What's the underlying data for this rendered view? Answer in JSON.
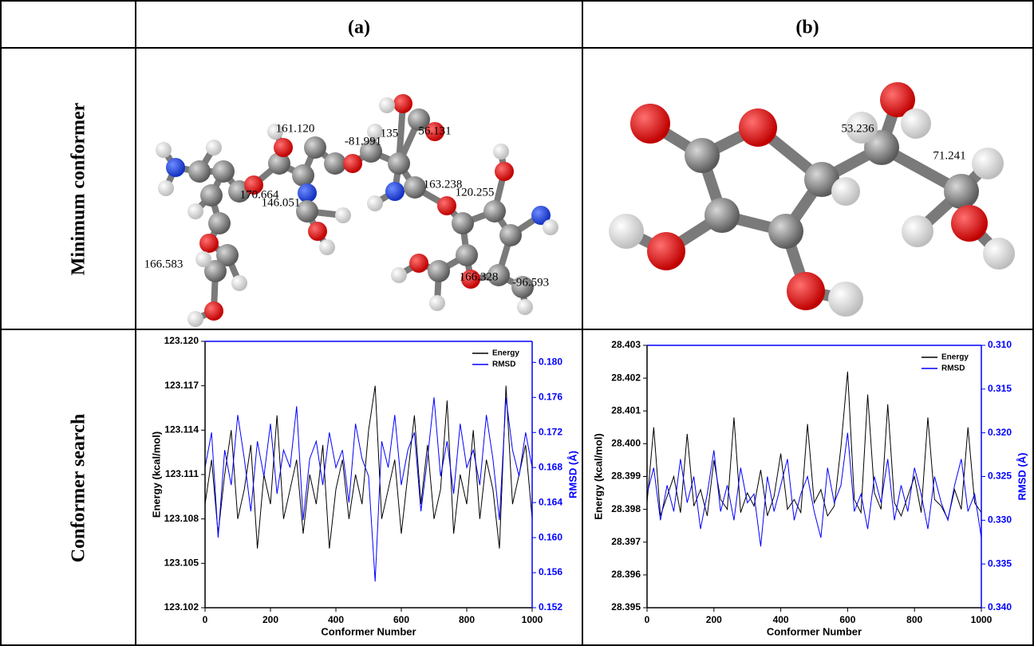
{
  "table": {
    "header": [
      "(a)",
      "(b)"
    ],
    "row_labels": [
      "Minimum conformer",
      "Conformer search"
    ]
  },
  "molecules": [
    {
      "labels": [
        "161.120",
        "-81.991",
        "135",
        "56.131",
        "170.664",
        "146.051",
        "163.238",
        "120.255",
        "166.583",
        "166.328",
        "-96.593"
      ]
    },
    {
      "labels": [
        "53.236",
        "71.241"
      ]
    }
  ],
  "chart_data": [
    {
      "type": "line",
      "xlabel": "Conformer Number",
      "ylabel": "Energy (kcal/mol)",
      "y2label": "RMSD (Å)",
      "x": [
        0,
        20,
        40,
        60,
        80,
        100,
        120,
        140,
        160,
        180,
        200,
        220,
        240,
        260,
        280,
        300,
        320,
        340,
        360,
        380,
        400,
        420,
        440,
        460,
        480,
        500,
        520,
        540,
        560,
        580,
        600,
        620,
        640,
        660,
        680,
        700,
        720,
        740,
        760,
        780,
        800,
        820,
        840,
        860,
        880,
        900,
        920,
        940,
        960,
        980,
        1000
      ],
      "xlim": [
        0,
        1000
      ],
      "xticks": [
        0,
        200,
        400,
        600,
        800,
        1000
      ],
      "ylim": [
        123.102,
        123.12
      ],
      "yticks": [
        123.102,
        123.105,
        123.108,
        123.111,
        123.114,
        123.117,
        {
          "value": 123.12,
          "label": "123.120"
        }
      ],
      "y2lim": [
        0.152,
        0.1824
      ],
      "y2ticks": [
        0.152,
        0.156,
        {
          "value": 0.16,
          "label": "0.160"
        },
        0.164,
        0.168,
        0.172,
        0.176,
        {
          "value": 0.18,
          "label": "0.180"
        }
      ],
      "legend": "upper right",
      "series": [
        {
          "name": "Energy",
          "color": "#000000",
          "values": [
            123.109,
            123.112,
            123.107,
            123.111,
            123.114,
            123.108,
            123.11,
            123.113,
            123.106,
            123.111,
            123.109,
            123.115,
            123.108,
            123.11,
            123.112,
            123.107,
            123.111,
            123.109,
            123.113,
            123.106,
            123.11,
            123.112,
            123.108,
            123.111,
            123.109,
            123.114,
            123.117,
            123.108,
            123.11,
            123.112,
            123.107,
            123.111,
            123.115,
            123.109,
            123.113,
            123.108,
            123.11,
            123.116,
            123.107,
            123.111,
            123.109,
            123.114,
            123.108,
            123.112,
            123.11,
            123.106,
            123.117,
            123.109,
            123.111,
            123.113,
            123.108
          ]
        },
        {
          "name": "RMSD",
          "color": "#0000ff",
          "axis": "y2",
          "values": [
            0.168,
            0.172,
            0.16,
            0.17,
            0.166,
            0.174,
            0.169,
            0.163,
            0.171,
            0.167,
            0.173,
            0.165,
            0.17,
            0.168,
            0.175,
            0.162,
            0.169,
            0.171,
            0.166,
            0.172,
            0.168,
            0.17,
            0.164,
            0.173,
            0.169,
            0.167,
            0.155,
            0.171,
            0.168,
            0.174,
            0.166,
            0.17,
            0.172,
            0.163,
            0.169,
            0.176,
            0.167,
            0.171,
            0.165,
            0.173,
            0.168,
            0.17,
            0.166,
            0.174,
            0.169,
            0.162,
            0.176,
            0.17,
            0.167,
            0.172,
            0.168
          ]
        }
      ]
    },
    {
      "type": "line",
      "xlabel": "Conformer Number",
      "ylabel": "Energy (kcal/mol)",
      "y2label": "RMSD (Å)",
      "x": [
        0,
        20,
        40,
        60,
        80,
        100,
        120,
        140,
        160,
        180,
        200,
        220,
        240,
        260,
        280,
        300,
        320,
        340,
        360,
        380,
        400,
        420,
        440,
        460,
        480,
        500,
        520,
        540,
        560,
        580,
        600,
        620,
        640,
        660,
        680,
        700,
        720,
        740,
        760,
        780,
        800,
        820,
        840,
        860,
        880,
        900,
        920,
        940,
        960,
        980,
        1000
      ],
      "xlim": [
        0,
        1000
      ],
      "xticks": [
        0,
        200,
        400,
        600,
        800,
        1000
      ],
      "ylim": [
        28.395,
        28.403
      ],
      "yticks": [
        28.395,
        28.396,
        28.397,
        28.398,
        28.399,
        {
          "value": 28.4,
          "label": "28.400"
        },
        28.401,
        28.402,
        28.403
      ],
      "y2lim": [
        0.34,
        0.31
      ],
      "y2ticks": [
        {
          "value": 0.34,
          "label": "0.340"
        },
        0.335,
        {
          "value": 0.33,
          "label": "0.330"
        },
        0.325,
        {
          "value": 0.32,
          "label": "0.320"
        },
        0.315,
        {
          "value": 0.31,
          "label": "0.310"
        }
      ],
      "legend": "upper right",
      "series": [
        {
          "name": "Energy",
          "color": "#000000",
          "values": [
            28.3982,
            28.4005,
            28.3978,
            28.3984,
            28.399,
            28.3979,
            28.4003,
            28.3981,
            28.3986,
            28.3978,
            28.3995,
            28.3983,
            28.398,
            28.4008,
            28.3979,
            28.3985,
            28.3981,
            28.3992,
            28.3978,
            28.3984,
            28.3997,
            28.398,
            28.3983,
            28.3979,
            28.4006,
            28.3982,
            28.3986,
            28.3978,
            28.3981,
            28.3999,
            28.4022,
            28.3983,
            28.3979,
            28.4015,
            28.3985,
            28.398,
            28.4012,
            28.3982,
            28.3978,
            28.3984,
            28.399,
            28.3979,
            28.4008,
            28.3983,
            28.3981,
            28.3977,
            28.3986,
            28.398,
            28.4005,
            28.3982,
            28.3979
          ]
        },
        {
          "name": "RMSD",
          "color": "#0000ff",
          "axis": "y2",
          "values": [
            0.327,
            0.324,
            0.33,
            0.326,
            0.329,
            0.323,
            0.328,
            0.325,
            0.331,
            0.327,
            0.322,
            0.329,
            0.326,
            0.33,
            0.324,
            0.328,
            0.327,
            0.333,
            0.325,
            0.329,
            0.326,
            0.323,
            0.33,
            0.327,
            0.325,
            0.329,
            0.332,
            0.324,
            0.328,
            0.326,
            0.32,
            0.329,
            0.327,
            0.331,
            0.325,
            0.328,
            0.323,
            0.33,
            0.326,
            0.329,
            0.324,
            0.327,
            0.331,
            0.325,
            0.328,
            0.33,
            0.326,
            0.323,
            0.329,
            0.327,
            0.332
          ]
        }
      ]
    }
  ]
}
